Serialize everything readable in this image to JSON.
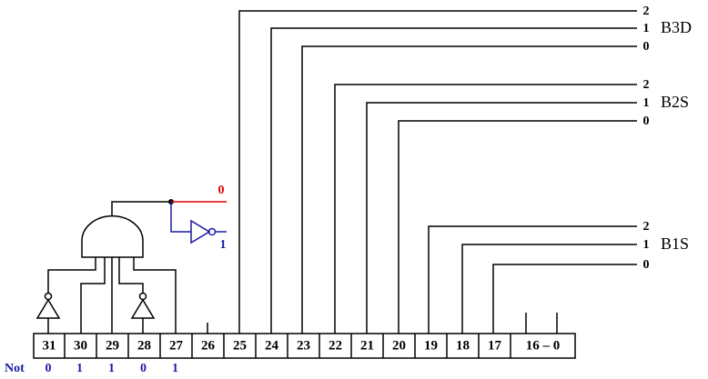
{
  "register": {
    "cells": [
      "31",
      "30",
      "29",
      "28",
      "27",
      "26",
      "25",
      "24",
      "23",
      "22",
      "21",
      "20",
      "19",
      "18",
      "17",
      "16 – 0"
    ]
  },
  "not_row": {
    "label": "Not",
    "values": [
      "0",
      "1",
      "1",
      "0",
      "1"
    ]
  },
  "gate_outputs": {
    "direct": "0",
    "inverted": "1"
  },
  "groups": [
    {
      "name": "B3D",
      "bits": [
        "2",
        "1",
        "0"
      ]
    },
    {
      "name": "B2S",
      "bits": [
        "2",
        "1",
        "0"
      ]
    },
    {
      "name": "B1S",
      "bits": [
        "2",
        "1",
        "0"
      ]
    }
  ]
}
